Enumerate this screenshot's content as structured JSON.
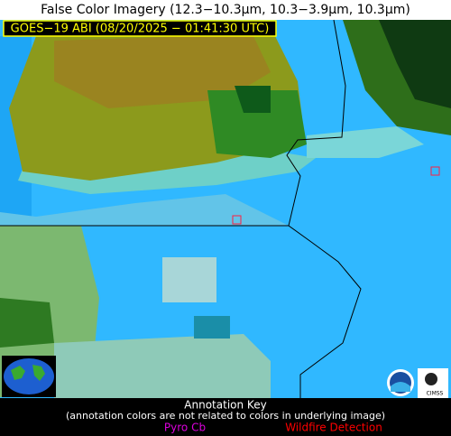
{
  "header": {
    "title": "False Color Imagery (12.3−10.3µm, 10.3−3.9µm, 10.3µm)",
    "timestamp": "GOES−19 ABI (08/20/2025 − 01:41:30 UTC)"
  },
  "annotation_key": {
    "title": "Annotation Key",
    "note": "(annotation colors are not related to colors in underlying image)",
    "legend": [
      {
        "label": "Pyro Cb",
        "color": "#dd00dd"
      },
      {
        "label": "Wildfire Detection",
        "color": "#ff0000"
      }
    ]
  },
  "logos": {
    "cimss": "CIMSS"
  }
}
